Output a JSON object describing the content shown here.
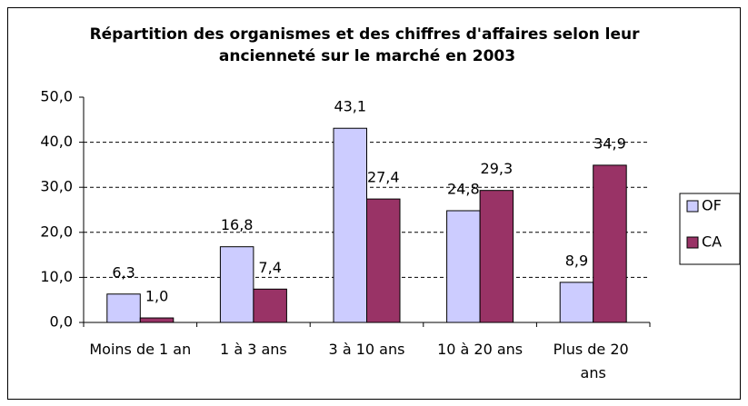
{
  "chart_data": {
    "type": "bar",
    "title": "Répartition des organismes et des chiffres d'affaires selon leur ancienneté sur le marché en 2003",
    "categories": [
      "Moins de 1 an",
      "1 à 3 ans",
      "3 à 10 ans",
      "10 à 20 ans",
      "Plus de 20 ans"
    ],
    "series": [
      {
        "name": "OF",
        "color": "#ccccff",
        "values": [
          6.3,
          16.8,
          43.1,
          24.8,
          8.9
        ],
        "value_labels": [
          "6,3",
          "16,8",
          "43,1",
          "24,8",
          "8,9"
        ]
      },
      {
        "name": "CA",
        "color": "#993366",
        "values": [
          1.0,
          7.4,
          27.4,
          29.3,
          34.9
        ],
        "value_labels": [
          "1,0",
          "7,4",
          "27,4",
          "29,3",
          "34,9"
        ]
      }
    ],
    "ylim": [
      0,
      50
    ],
    "yticks": [
      {
        "value": 0,
        "label": "0,0"
      },
      {
        "value": 10,
        "label": "10,0"
      },
      {
        "value": 20,
        "label": "20,0"
      },
      {
        "value": 30,
        "label": "30,0"
      },
      {
        "value": 40,
        "label": "40,0"
      },
      {
        "value": 50,
        "label": "50,0"
      }
    ],
    "grid": true,
    "legend": "right"
  }
}
